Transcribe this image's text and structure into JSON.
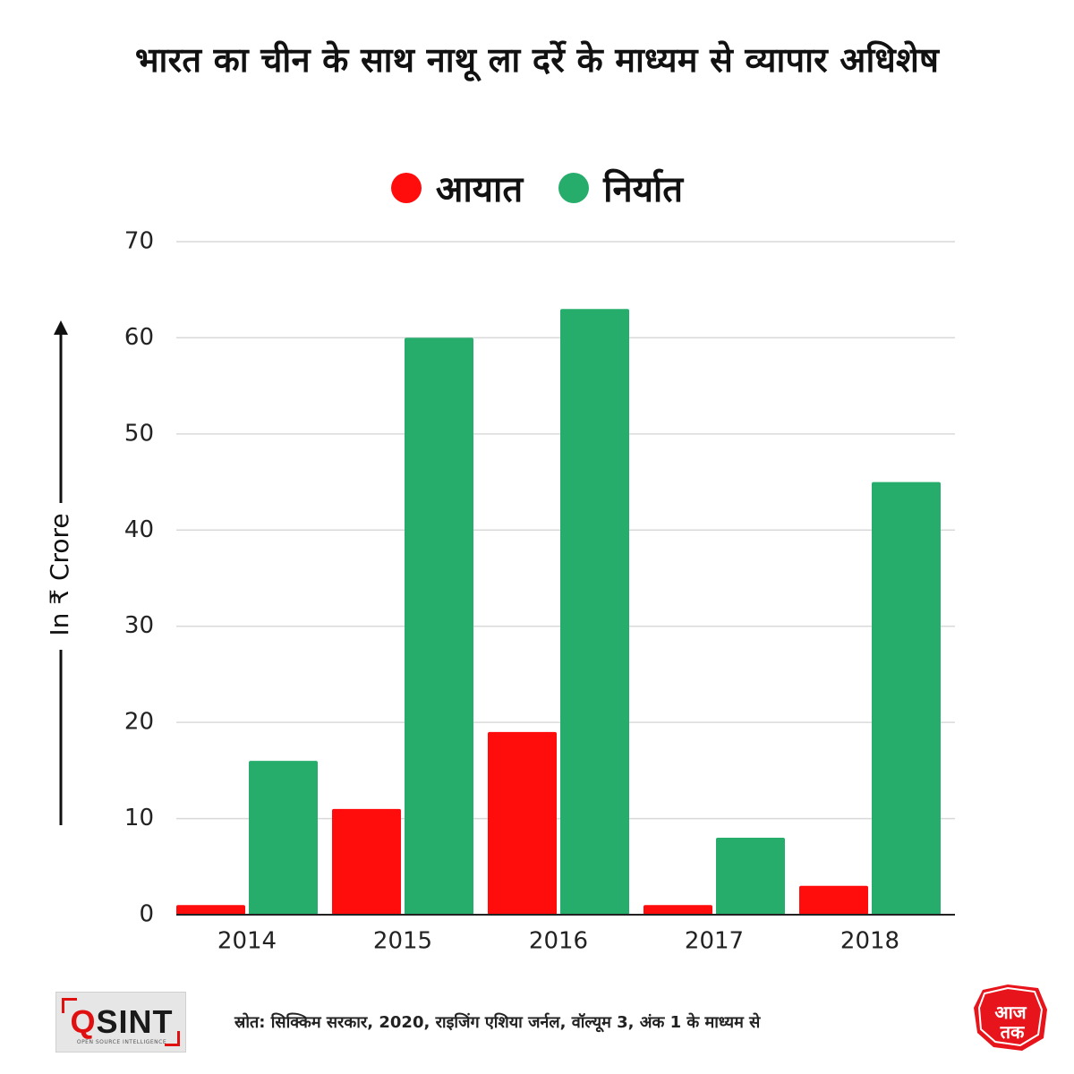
{
  "chart_data": {
    "type": "bar",
    "title": "भारत का चीन के साथ नाथू ला दर्रे के माध्यम से व्यापार अधिशेष",
    "categories": [
      "2014",
      "2015",
      "2016",
      "2017",
      "2018"
    ],
    "series": [
      {
        "name": "आयात",
        "color": "#ff0d0d",
        "values": [
          1,
          11,
          19,
          1,
          3
        ]
      },
      {
        "name": "निर्यात",
        "color": "#26ad6b",
        "values": [
          16,
          60,
          63,
          8,
          45
        ]
      }
    ],
    "ylabel": "In ₹ Crore",
    "ylim": [
      0,
      70
    ],
    "yticks": [
      0,
      10,
      20,
      30,
      40,
      50,
      60,
      70
    ],
    "grid": true,
    "legend_position": "top-center"
  },
  "footer": {
    "source": "स्रोत: सिक्किम सरकार, 2020, राइजिंग एशिया जर्नल, वॉल्यूम 3, अंक 1 के माध्यम से",
    "left_logo": "OSINT",
    "right_logo": "आज तक"
  },
  "colors": {
    "grid": "#d9d9d9",
    "axis": "#222222"
  }
}
